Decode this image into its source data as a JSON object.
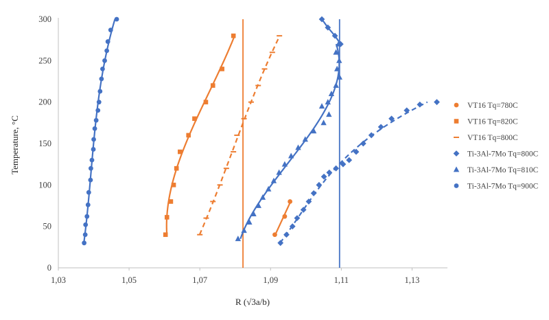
{
  "chart_data": {
    "type": "scatter",
    "title": "",
    "xlabel": "R (√3a/b)",
    "ylabel": "Temperature, °C",
    "xlim": [
      1.03,
      1.14
    ],
    "ylim": [
      0,
      300
    ],
    "xticks": [
      1.03,
      1.05,
      1.07,
      1.09,
      1.11,
      1.13
    ],
    "xtick_labels": [
      "1,03",
      "1,05",
      "1,07",
      "1,09",
      "1,11",
      "1,13"
    ],
    "yticks": [
      0,
      50,
      100,
      150,
      200,
      250,
      300
    ],
    "ytick_labels": [
      "0",
      "50",
      "100",
      "150",
      "200",
      "250",
      "300"
    ],
    "grid": false,
    "legend_position": "right",
    "vertical_reference_lines": [
      {
        "x": 1.0822,
        "color": "#ED7D31"
      },
      {
        "x": 1.1095,
        "color": "#4472C4"
      }
    ],
    "series": [
      {
        "name": "VT16 Tq=780C",
        "marker": "circle",
        "color": "#ED7D31",
        "line": "solid",
        "points": [
          [
            1.0912,
            40
          ],
          [
            1.094,
            62
          ],
          [
            1.0955,
            80
          ]
        ]
      },
      {
        "name": "VT16 Tq=820C",
        "marker": "square",
        "color": "#ED7D31",
        "line": "solid",
        "points": [
          [
            1.0603,
            40
          ],
          [
            1.0607,
            61
          ],
          [
            1.0618,
            80
          ],
          [
            1.0626,
            100
          ],
          [
            1.0634,
            120
          ],
          [
            1.0644,
            140
          ],
          [
            1.0668,
            160
          ],
          [
            1.0685,
            180
          ],
          [
            1.0717,
            200
          ],
          [
            1.0737,
            220
          ],
          [
            1.0763,
            240
          ],
          [
            1.0795,
            280
          ]
        ]
      },
      {
        "name": "VT16 Tq=800C",
        "marker": "dash",
        "color": "#ED7D31",
        "line": "dashed",
        "points": [
          [
            1.07,
            40
          ],
          [
            1.0718,
            60
          ],
          [
            1.0737,
            80
          ],
          [
            1.0757,
            100
          ],
          [
            1.0775,
            120
          ],
          [
            1.0795,
            140
          ],
          [
            1.0805,
            160
          ],
          [
            1.0825,
            180
          ],
          [
            1.0845,
            200
          ],
          [
            1.0865,
            220
          ],
          [
            1.0883,
            240
          ],
          [
            1.0905,
            260
          ],
          [
            1.0925,
            280
          ]
        ]
      },
      {
        "name": "Ti-3Al-7Mo Tq=800C",
        "marker": "diamond",
        "color": "#4472C4",
        "line": "dashed",
        "points": [
          [
            1.0928,
            30
          ],
          [
            1.0945,
            40
          ],
          [
            1.0962,
            50
          ],
          [
            1.0975,
            60
          ],
          [
            1.0993,
            70
          ],
          [
            1.1008,
            80
          ],
          [
            1.1022,
            90
          ],
          [
            1.1037,
            100
          ],
          [
            1.1051,
            110
          ],
          [
            1.1066,
            115
          ],
          [
            1.1085,
            120
          ],
          [
            1.1105,
            125
          ],
          [
            1.1122,
            130
          ],
          [
            1.1142,
            140
          ],
          [
            1.1162,
            150
          ],
          [
            1.1185,
            160
          ],
          [
            1.1212,
            170
          ],
          [
            1.1242,
            180
          ],
          [
            1.1285,
            190
          ],
          [
            1.1322,
            197
          ],
          [
            1.137,
            200
          ],
          [
            1.1045,
            300
          ],
          [
            1.1062,
            290
          ],
          [
            1.1082,
            280
          ],
          [
            1.1098,
            270
          ]
        ]
      },
      {
        "name": "Ti-3Al-7Mo Tq=810C",
        "marker": "triangle",
        "color": "#4472C4",
        "line": "solid",
        "points": [
          [
            1.0808,
            35
          ],
          [
            1.0825,
            45
          ],
          [
            1.084,
            55
          ],
          [
            1.0852,
            65
          ],
          [
            1.0866,
            75
          ],
          [
            1.0878,
            85
          ],
          [
            1.0894,
            95
          ],
          [
            1.0909,
            105
          ],
          [
            1.0924,
            115
          ],
          [
            1.094,
            125
          ],
          [
            1.0958,
            135
          ],
          [
            1.0978,
            145
          ],
          [
            1.0998,
            155
          ],
          [
            1.1022,
            165
          ],
          [
            1.105,
            175
          ],
          [
            1.1065,
            185
          ],
          [
            1.1045,
            195
          ],
          [
            1.1062,
            200
          ],
          [
            1.1072,
            210
          ],
          [
            1.1085,
            220
          ],
          [
            1.1095,
            230
          ],
          [
            1.1088,
            240
          ],
          [
            1.1094,
            250
          ],
          [
            1.1085,
            260
          ],
          [
            1.1092,
            270
          ]
        ]
      },
      {
        "name": "Ti-3Al-7Mo Tq=900C",
        "marker": "circle",
        "color": "#4472C4",
        "line": "solid",
        "points": [
          [
            1.0373,
            30
          ],
          [
            1.0376,
            40
          ],
          [
            1.0377,
            52
          ],
          [
            1.0381,
            62
          ],
          [
            1.0384,
            76
          ],
          [
            1.0386,
            91
          ],
          [
            1.0391,
            106
          ],
          [
            1.0392,
            120
          ],
          [
            1.0395,
            130
          ],
          [
            1.0399,
            143
          ],
          [
            1.04,
            155
          ],
          [
            1.0403,
            168
          ],
          [
            1.0407,
            178
          ],
          [
            1.0412,
            190
          ],
          [
            1.0415,
            200
          ],
          [
            1.0418,
            213
          ],
          [
            1.0422,
            228
          ],
          [
            1.0425,
            240
          ],
          [
            1.0431,
            250
          ],
          [
            1.0437,
            262
          ],
          [
            1.044,
            273
          ],
          [
            1.0448,
            287
          ],
          [
            1.0465,
            300
          ]
        ]
      }
    ]
  }
}
